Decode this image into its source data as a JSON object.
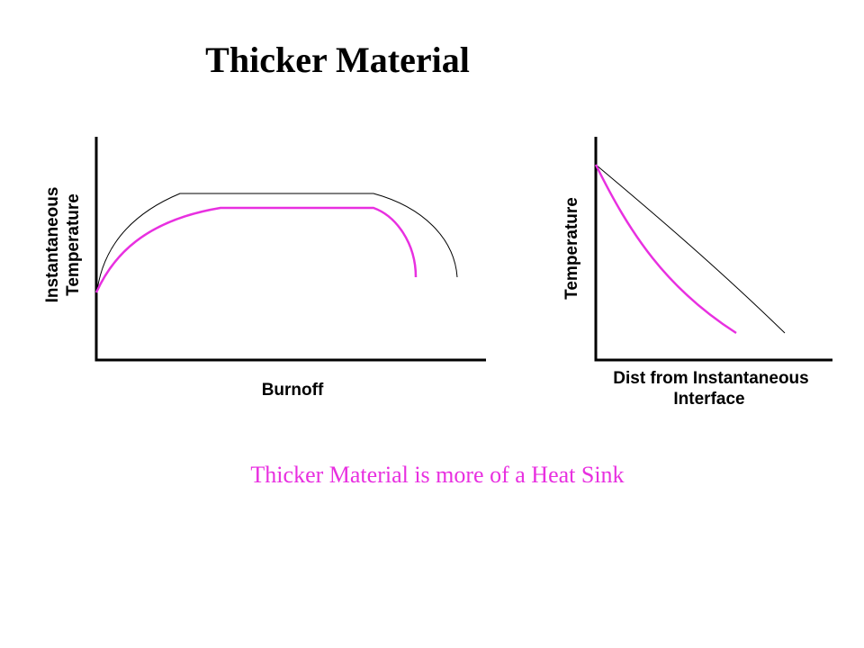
{
  "title": "Thicker Material",
  "diagrams": [
    {
      "y_label_lines": [
        "Instantaneous",
        "Temperature"
      ],
      "x_label_lines": [
        "Burnoff"
      ]
    },
    {
      "y_label_lines": [
        "Temperature"
      ],
      "x_label_lines": [
        "Dist from Instantaneous",
        "Interface"
      ]
    }
  ],
  "caption": "Thicker Material is more of a Heat Sink"
}
